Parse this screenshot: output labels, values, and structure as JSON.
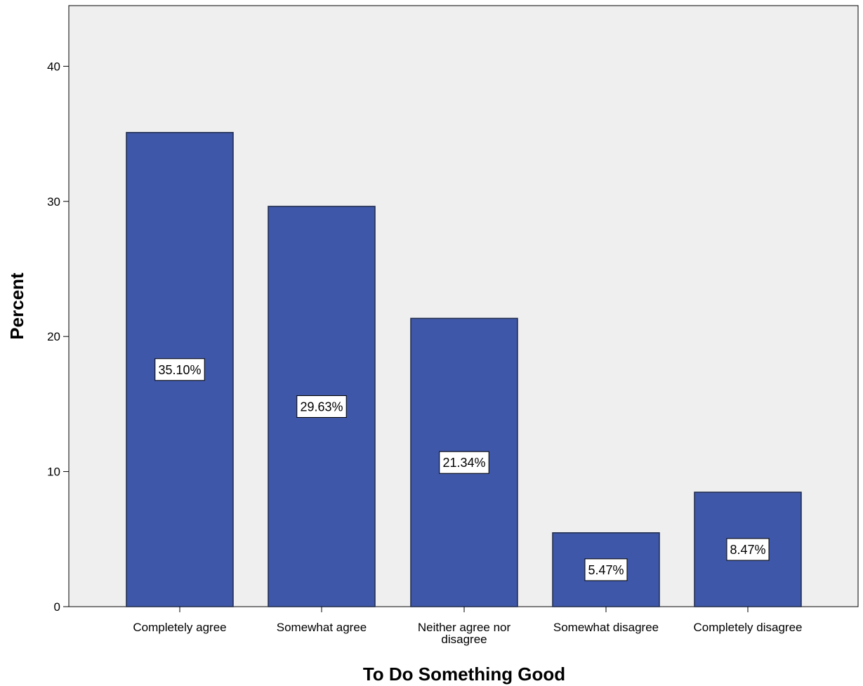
{
  "chart_data": {
    "type": "bar",
    "title": "",
    "xlabel": "To Do Something Good",
    "ylabel": "Percent",
    "categories": [
      [
        "Completely agree"
      ],
      [
        "Somewhat agree"
      ],
      [
        "Neither agree nor",
        "disagree"
      ],
      [
        "Somewhat disagree"
      ],
      [
        "Completely disagree"
      ]
    ],
    "values": [
      35.1,
      29.63,
      21.34,
      5.47,
      8.47
    ],
    "data_labels": [
      "35.10%",
      "29.63%",
      "21.34%",
      "5.47%",
      "8.47%"
    ],
    "ylim": [
      0,
      44.5
    ],
    "yticks": [
      0,
      10,
      20,
      30,
      40
    ],
    "grid": false,
    "legend": "none",
    "colors": {
      "bar_fill": "#3f57a8",
      "bar_stroke": "#1e2a4a",
      "plot_background": "#efefef",
      "label_box_fill": "#ffffff",
      "axis": "#000000"
    }
  }
}
